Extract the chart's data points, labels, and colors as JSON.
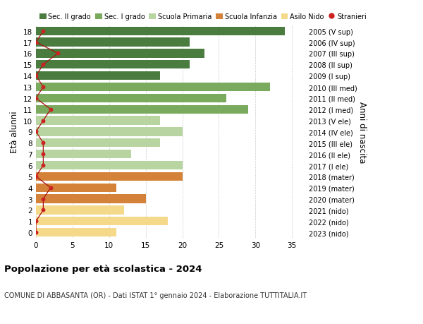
{
  "ages": [
    18,
    17,
    16,
    15,
    14,
    13,
    12,
    11,
    10,
    9,
    8,
    7,
    6,
    5,
    4,
    3,
    2,
    1,
    0
  ],
  "right_labels": [
    "2005 (V sup)",
    "2006 (IV sup)",
    "2007 (III sup)",
    "2008 (II sup)",
    "2009 (I sup)",
    "2010 (III med)",
    "2011 (II med)",
    "2012 (I med)",
    "2013 (V ele)",
    "2014 (IV ele)",
    "2015 (III ele)",
    "2016 (II ele)",
    "2017 (I ele)",
    "2018 (mater)",
    "2019 (mater)",
    "2020 (mater)",
    "2021 (nido)",
    "2022 (nido)",
    "2023 (nido)"
  ],
  "bar_values": [
    34,
    21,
    23,
    21,
    17,
    32,
    26,
    29,
    17,
    20,
    17,
    13,
    20,
    20,
    11,
    15,
    12,
    18,
    11
  ],
  "bar_colors": [
    "#4a7c3f",
    "#4a7c3f",
    "#4a7c3f",
    "#4a7c3f",
    "#4a7c3f",
    "#7aaa5e",
    "#7aaa5e",
    "#7aaa5e",
    "#b8d4a0",
    "#b8d4a0",
    "#b8d4a0",
    "#b8d4a0",
    "#b8d4a0",
    "#d4823a",
    "#d4823a",
    "#d4823a",
    "#f5d98b",
    "#f5d98b",
    "#f5d98b"
  ],
  "stranieri_values": [
    1,
    0,
    3,
    1,
    0,
    1,
    0,
    2,
    1,
    0,
    1,
    1,
    1,
    0,
    2,
    1,
    1,
    0,
    0
  ],
  "legend_labels": [
    "Sec. II grado",
    "Sec. I grado",
    "Scuola Primaria",
    "Scuola Infanzia",
    "Asilo Nido",
    "Stranieri"
  ],
  "legend_colors": [
    "#4a7c3f",
    "#7aaa5e",
    "#b8d4a0",
    "#d4823a",
    "#f5d98b",
    "#cc2222"
  ],
  "ylabel": "Età alunni",
  "right_ylabel": "Anni di nascita",
  "xlim": [
    0,
    37
  ],
  "xticks": [
    0,
    5,
    10,
    15,
    20,
    25,
    30,
    35
  ],
  "title": "Popolazione per età scolastica - 2024",
  "subtitle": "COMUNE DI ABBASANTA (OR) - Dati ISTAT 1° gennaio 2024 - Elaborazione TUTTITALIA.IT",
  "background_color": "#ffffff",
  "grid_color": "#cccccc",
  "stranieri_line_color": "#aa1111",
  "stranieri_dot_color": "#cc2222"
}
